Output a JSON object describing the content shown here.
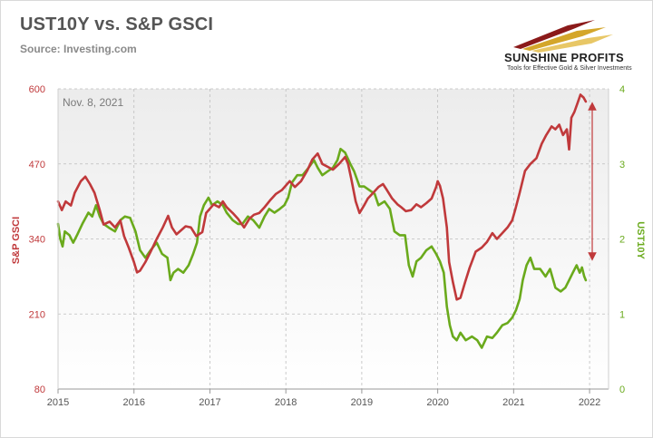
{
  "header": {
    "title": "UST10Y vs. S&P GSCI",
    "source": "Source: Investing.com",
    "logo_name": "SUNSHINE PROFITS",
    "logo_tagline": "Tools for Effective Gold & Silver Investments"
  },
  "colors": {
    "gsci": "#c0393b",
    "ust": "#6aaa1c",
    "plot_bg_top": "#eeeeee",
    "grid": "#bdbdbd"
  },
  "chart_data": {
    "type": "line",
    "annotation": "Nov. 8, 2021",
    "x_ticks": [
      "2015",
      "2016",
      "2017",
      "2018",
      "2019",
      "2020",
      "2021",
      "2022"
    ],
    "xlim": [
      2015.0,
      2022.25
    ],
    "grid": true,
    "y_left": {
      "label": "S&P GSCI",
      "ticks": [
        80,
        210,
        340,
        470,
        600
      ],
      "ylim": [
        80,
        600
      ]
    },
    "y_right": {
      "label": "UST10Y",
      "ticks": [
        0,
        1,
        2,
        3,
        4
      ],
      "ylim": [
        0,
        4
      ]
    },
    "series": [
      {
        "name": "S&P GSCI",
        "axis": "left",
        "points": [
          [
            2015.0,
            405
          ],
          [
            2015.05,
            390
          ],
          [
            2015.1,
            405
          ],
          [
            2015.17,
            398
          ],
          [
            2015.22,
            420
          ],
          [
            2015.3,
            440
          ],
          [
            2015.36,
            448
          ],
          [
            2015.42,
            435
          ],
          [
            2015.48,
            420
          ],
          [
            2015.55,
            390
          ],
          [
            2015.6,
            365
          ],
          [
            2015.68,
            370
          ],
          [
            2015.75,
            360
          ],
          [
            2015.82,
            372
          ],
          [
            2015.87,
            345
          ],
          [
            2015.93,
            325
          ],
          [
            2016.0,
            300
          ],
          [
            2016.04,
            282
          ],
          [
            2016.08,
            285
          ],
          [
            2016.15,
            300
          ],
          [
            2016.22,
            318
          ],
          [
            2016.3,
            340
          ],
          [
            2016.38,
            360
          ],
          [
            2016.45,
            380
          ],
          [
            2016.5,
            360
          ],
          [
            2016.56,
            348
          ],
          [
            2016.62,
            355
          ],
          [
            2016.68,
            362
          ],
          [
            2016.75,
            360
          ],
          [
            2016.82,
            345
          ],
          [
            2016.9,
            352
          ],
          [
            2016.95,
            385
          ],
          [
            2017.05,
            400
          ],
          [
            2017.12,
            395
          ],
          [
            2017.17,
            405
          ],
          [
            2017.22,
            395
          ],
          [
            2017.3,
            385
          ],
          [
            2017.37,
            375
          ],
          [
            2017.45,
            360
          ],
          [
            2017.52,
            375
          ],
          [
            2017.58,
            382
          ],
          [
            2017.65,
            385
          ],
          [
            2017.72,
            395
          ],
          [
            2017.8,
            408
          ],
          [
            2017.87,
            418
          ],
          [
            2017.95,
            425
          ],
          [
            2018.05,
            440
          ],
          [
            2018.12,
            430
          ],
          [
            2018.2,
            440
          ],
          [
            2018.28,
            458
          ],
          [
            2018.35,
            478
          ],
          [
            2018.42,
            488
          ],
          [
            2018.48,
            470
          ],
          [
            2018.55,
            465
          ],
          [
            2018.62,
            460
          ],
          [
            2018.7,
            470
          ],
          [
            2018.78,
            482
          ],
          [
            2018.82,
            470
          ],
          [
            2018.86,
            445
          ],
          [
            2018.92,
            405
          ],
          [
            2018.97,
            385
          ],
          [
            2019.03,
            398
          ],
          [
            2019.08,
            410
          ],
          [
            2019.15,
            420
          ],
          [
            2019.22,
            430
          ],
          [
            2019.28,
            435
          ],
          [
            2019.33,
            425
          ],
          [
            2019.4,
            410
          ],
          [
            2019.47,
            400
          ],
          [
            2019.52,
            395
          ],
          [
            2019.58,
            388
          ],
          [
            2019.65,
            390
          ],
          [
            2019.72,
            400
          ],
          [
            2019.78,
            395
          ],
          [
            2019.85,
            402
          ],
          [
            2019.92,
            410
          ],
          [
            2019.98,
            430
          ],
          [
            2020.0,
            440
          ],
          [
            2020.03,
            432
          ],
          [
            2020.07,
            410
          ],
          [
            2020.12,
            360
          ],
          [
            2020.15,
            300
          ],
          [
            2020.2,
            265
          ],
          [
            2020.25,
            235
          ],
          [
            2020.3,
            238
          ],
          [
            2020.36,
            265
          ],
          [
            2020.42,
            290
          ],
          [
            2020.5,
            318
          ],
          [
            2020.58,
            325
          ],
          [
            2020.65,
            335
          ],
          [
            2020.72,
            350
          ],
          [
            2020.78,
            340
          ],
          [
            2020.85,
            350
          ],
          [
            2020.92,
            360
          ],
          [
            2020.98,
            372
          ],
          [
            2021.02,
            390
          ],
          [
            2021.08,
            420
          ],
          [
            2021.15,
            458
          ],
          [
            2021.22,
            470
          ],
          [
            2021.3,
            480
          ],
          [
            2021.37,
            505
          ],
          [
            2021.43,
            520
          ],
          [
            2021.5,
            535
          ],
          [
            2021.55,
            530
          ],
          [
            2021.6,
            538
          ],
          [
            2021.65,
            520
          ],
          [
            2021.7,
            530
          ],
          [
            2021.73,
            495
          ],
          [
            2021.76,
            550
          ],
          [
            2021.8,
            560
          ],
          [
            2021.84,
            575
          ],
          [
            2021.88,
            590
          ],
          [
            2021.92,
            585
          ],
          [
            2021.95,
            578
          ]
        ]
      },
      {
        "name": "UST10Y",
        "axis": "right",
        "points": [
          [
            2015.0,
            2.2
          ],
          [
            2015.03,
            2.0
          ],
          [
            2015.06,
            1.9
          ],
          [
            2015.09,
            2.1
          ],
          [
            2015.15,
            2.05
          ],
          [
            2015.2,
            1.95
          ],
          [
            2015.25,
            2.05
          ],
          [
            2015.32,
            2.2
          ],
          [
            2015.4,
            2.35
          ],
          [
            2015.45,
            2.3
          ],
          [
            2015.5,
            2.45
          ],
          [
            2015.55,
            2.3
          ],
          [
            2015.6,
            2.2
          ],
          [
            2015.67,
            2.15
          ],
          [
            2015.75,
            2.1
          ],
          [
            2015.82,
            2.25
          ],
          [
            2015.88,
            2.3
          ],
          [
            2015.95,
            2.28
          ],
          [
            2016.02,
            2.1
          ],
          [
            2016.08,
            1.85
          ],
          [
            2016.15,
            1.75
          ],
          [
            2016.22,
            1.85
          ],
          [
            2016.3,
            1.95
          ],
          [
            2016.37,
            1.8
          ],
          [
            2016.44,
            1.75
          ],
          [
            2016.48,
            1.45
          ],
          [
            2016.52,
            1.55
          ],
          [
            2016.58,
            1.6
          ],
          [
            2016.65,
            1.55
          ],
          [
            2016.72,
            1.65
          ],
          [
            2016.78,
            1.8
          ],
          [
            2016.83,
            1.95
          ],
          [
            2016.87,
            2.3
          ],
          [
            2016.92,
            2.45
          ],
          [
            2016.98,
            2.55
          ],
          [
            2017.03,
            2.45
          ],
          [
            2017.1,
            2.5
          ],
          [
            2017.17,
            2.45
          ],
          [
            2017.22,
            2.35
          ],
          [
            2017.3,
            2.25
          ],
          [
            2017.37,
            2.2
          ],
          [
            2017.43,
            2.2
          ],
          [
            2017.5,
            2.3
          ],
          [
            2017.57,
            2.25
          ],
          [
            2017.65,
            2.15
          ],
          [
            2017.72,
            2.3
          ],
          [
            2017.78,
            2.4
          ],
          [
            2017.85,
            2.35
          ],
          [
            2017.92,
            2.4
          ],
          [
            2017.98,
            2.45
          ],
          [
            2018.03,
            2.55
          ],
          [
            2018.08,
            2.75
          ],
          [
            2018.15,
            2.85
          ],
          [
            2018.22,
            2.85
          ],
          [
            2018.3,
            2.95
          ],
          [
            2018.37,
            3.05
          ],
          [
            2018.42,
            2.95
          ],
          [
            2018.48,
            2.85
          ],
          [
            2018.55,
            2.9
          ],
          [
            2018.62,
            2.95
          ],
          [
            2018.68,
            3.05
          ],
          [
            2018.72,
            3.2
          ],
          [
            2018.78,
            3.15
          ],
          [
            2018.85,
            3.0
          ],
          [
            2018.9,
            2.9
          ],
          [
            2018.97,
            2.7
          ],
          [
            2019.03,
            2.7
          ],
          [
            2019.1,
            2.65
          ],
          [
            2019.17,
            2.6
          ],
          [
            2019.22,
            2.45
          ],
          [
            2019.3,
            2.5
          ],
          [
            2019.37,
            2.4
          ],
          [
            2019.43,
            2.1
          ],
          [
            2019.5,
            2.05
          ],
          [
            2019.57,
            2.05
          ],
          [
            2019.62,
            1.65
          ],
          [
            2019.67,
            1.5
          ],
          [
            2019.72,
            1.7
          ],
          [
            2019.78,
            1.75
          ],
          [
            2019.85,
            1.85
          ],
          [
            2019.92,
            1.9
          ],
          [
            2019.98,
            1.8
          ],
          [
            2020.03,
            1.7
          ],
          [
            2020.08,
            1.55
          ],
          [
            2020.12,
            1.1
          ],
          [
            2020.16,
            0.85
          ],
          [
            2020.2,
            0.7
          ],
          [
            2020.25,
            0.65
          ],
          [
            2020.3,
            0.75
          ],
          [
            2020.37,
            0.65
          ],
          [
            2020.45,
            0.7
          ],
          [
            2020.52,
            0.65
          ],
          [
            2020.58,
            0.55
          ],
          [
            2020.65,
            0.7
          ],
          [
            2020.72,
            0.68
          ],
          [
            2020.78,
            0.75
          ],
          [
            2020.85,
            0.85
          ],
          [
            2020.92,
            0.88
          ],
          [
            2020.98,
            0.95
          ],
          [
            2021.03,
            1.05
          ],
          [
            2021.08,
            1.2
          ],
          [
            2021.12,
            1.45
          ],
          [
            2021.17,
            1.65
          ],
          [
            2021.22,
            1.75
          ],
          [
            2021.27,
            1.6
          ],
          [
            2021.35,
            1.6
          ],
          [
            2021.42,
            1.5
          ],
          [
            2021.48,
            1.6
          ],
          [
            2021.55,
            1.35
          ],
          [
            2021.62,
            1.3
          ],
          [
            2021.68,
            1.35
          ],
          [
            2021.73,
            1.45
          ],
          [
            2021.78,
            1.55
          ],
          [
            2021.83,
            1.65
          ],
          [
            2021.87,
            1.55
          ],
          [
            2021.9,
            1.62
          ],
          [
            2021.93,
            1.5
          ],
          [
            2021.95,
            1.45
          ]
        ]
      }
    ]
  }
}
